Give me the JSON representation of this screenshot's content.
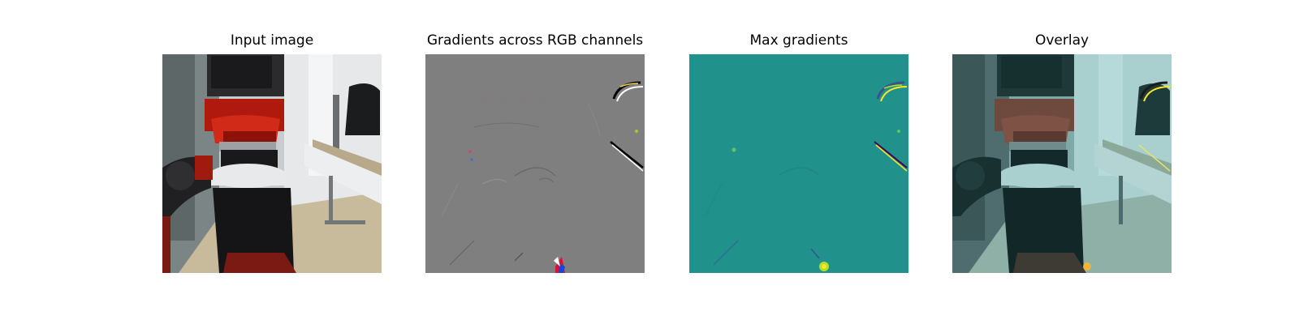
{
  "panels": [
    {
      "title": "Input image",
      "content": "robot arm in office scene"
    },
    {
      "title": "Gradients across RGB channels",
      "content": "gray gradient map"
    },
    {
      "title": "Max gradients",
      "content": "teal gradient magnitude map"
    },
    {
      "title": "Overlay",
      "content": "gradient overlay on photo"
    }
  ],
  "colors": {
    "gradient_gray": "#7f7f7f",
    "max_grad_teal": "#21918c",
    "overlay_tint": "#4fb3b0",
    "robot_red": "#b01a0e",
    "hotspot_yellow": "#fde725"
  }
}
